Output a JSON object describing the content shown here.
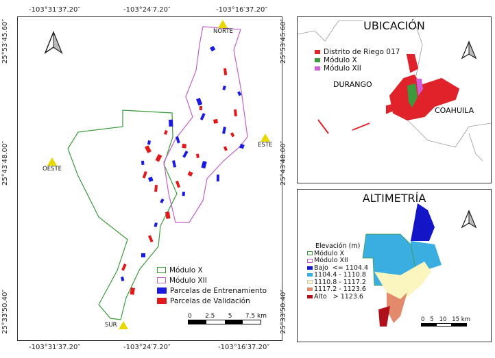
{
  "main_map": {
    "coords_top": [
      "-103°31′37.20″",
      "-103°24′7.20″",
      "-103°16′37.20″"
    ],
    "coords_bottom": [
      "-103°31′37.20″",
      "-103°24′7.20″",
      "-103°16′37.20″"
    ],
    "coords_left": [
      "25°53′45.60″",
      "25°43′48.00″",
      "25°33′50.40″"
    ],
    "coords_right": [
      "25°53′45.60″",
      "25°43′48.00″",
      "25°33′50.40″"
    ],
    "markers": {
      "north": "NORTE",
      "east": "ESTE",
      "west": "OESTE",
      "south": "SUR"
    },
    "legend": [
      {
        "label": "Módulo X",
        "color": "#3a9a3a",
        "type": "outline"
      },
      {
        "label": "Módulo XII",
        "color": "#c060c8",
        "type": "outline"
      },
      {
        "label": "Parcelas de Entrenamiento",
        "color": "#1a1ae0",
        "type": "fill"
      },
      {
        "label": "Parcelas de Validación",
        "color": "#e01a1a",
        "type": "fill"
      }
    ],
    "scale": {
      "ticks": [
        "0",
        "2.5",
        "5",
        "7.5 km"
      ]
    }
  },
  "location_map": {
    "title": "UBICACIÓN",
    "legend": [
      {
        "label": "Distrito de Riego 017",
        "color": "#e0222a"
      },
      {
        "label": "Módulo X",
        "color": "#3c9a3c"
      },
      {
        "label": "Módulo XII",
        "color": "#d060d8"
      }
    ],
    "states": [
      "DURANGO",
      "COAHUILA"
    ]
  },
  "altimetry_map": {
    "title": "ALTIMETRÍA",
    "legend_title": "Elevación (m)",
    "legend": [
      {
        "label": "Módulo X",
        "color": "#3a9a3a",
        "type": "outline"
      },
      {
        "label": "Módulo XII",
        "color": "#c060c8",
        "type": "outline"
      },
      {
        "label": "Bajo  <= 1104.4",
        "color": "#1515c8",
        "type": "fill"
      },
      {
        "label": "1104.4 - 1110.8",
        "color": "#3aaee0",
        "type": "fill"
      },
      {
        "label": "1110.8 - 1117.2",
        "color": "#fbf6c0",
        "type": "fill"
      },
      {
        "label": "1117.2 - 1123.6",
        "color": "#e48a6c",
        "type": "fill"
      },
      {
        "label": "Alto   > 1123.6",
        "color": "#b0101c",
        "type": "fill"
      }
    ],
    "scale": {
      "ticks": [
        "0",
        "5",
        "10",
        "15 km"
      ]
    }
  }
}
